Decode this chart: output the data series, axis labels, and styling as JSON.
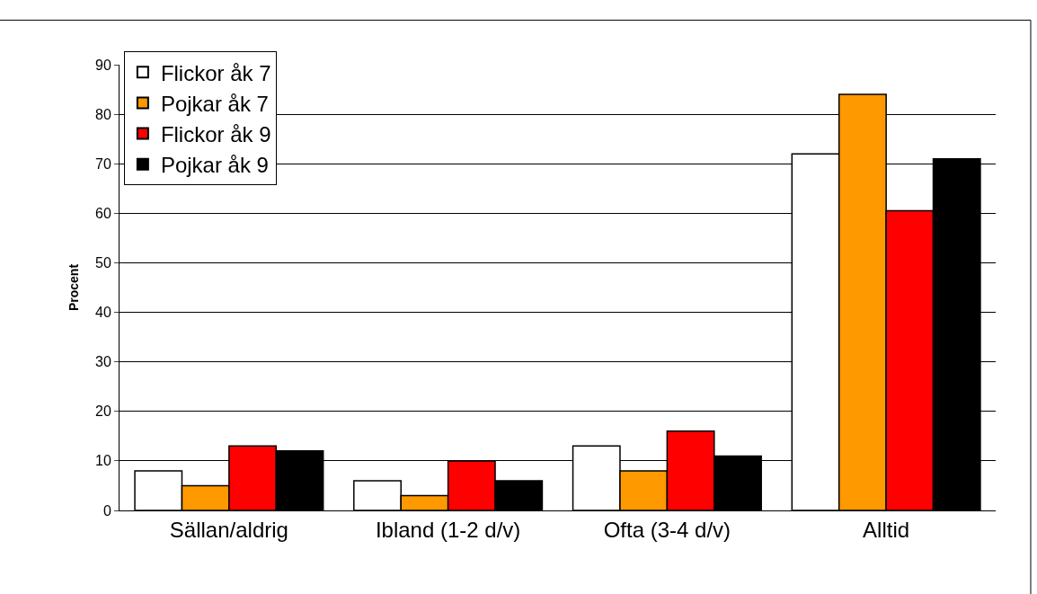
{
  "chart_data": {
    "type": "bar",
    "ylabel": "Procent",
    "categories": [
      "Sällan/aldrig",
      "Ibland (1-2 d/v)",
      "Ofta (3-4 d/v)",
      "Alltid"
    ],
    "series": [
      {
        "name": "Flickor åk 7",
        "color": "#ffffff",
        "values": [
          8,
          6,
          13,
          72
        ]
      },
      {
        "name": "Pojkar åk 7",
        "color": "#ff9900",
        "values": [
          5,
          3,
          8,
          84
        ]
      },
      {
        "name": "Flickor åk 9",
        "color": "#ff0000",
        "values": [
          13,
          10,
          16,
          60.5
        ]
      },
      {
        "name": "Pojkar åk 9",
        "color": "#000000",
        "values": [
          12,
          6,
          11,
          71
        ]
      }
    ],
    "ylim": [
      0,
      90
    ],
    "yticks": [
      0,
      10,
      20,
      30,
      40,
      50,
      60,
      70,
      80,
      90
    ],
    "grid": "y",
    "legend": "top left"
  }
}
